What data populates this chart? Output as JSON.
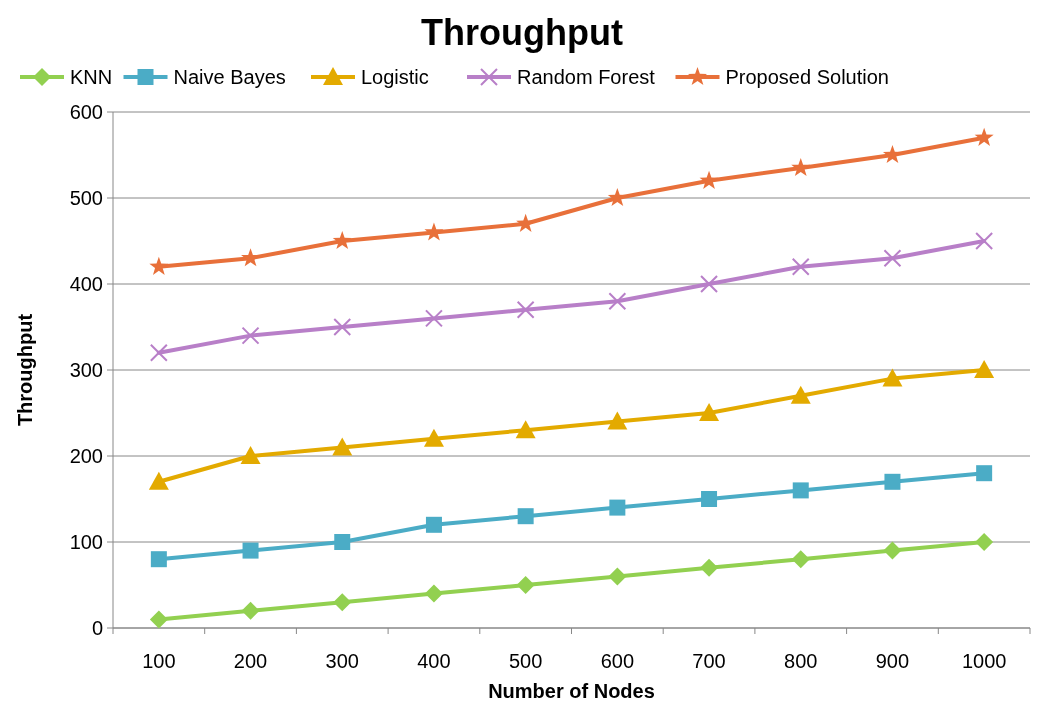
{
  "chart_data": {
    "type": "line",
    "title": "Throughput",
    "xlabel": "Number of Nodes",
    "ylabel": "Throughput",
    "categories": [
      "100",
      "200",
      "300",
      "400",
      "500",
      "600",
      "700",
      "800",
      "900",
      "1000"
    ],
    "series": [
      {
        "name": "KNN",
        "color": "#92d050",
        "marker": "diamond",
        "values": [
          10,
          20,
          30,
          40,
          50,
          60,
          70,
          80,
          90,
          100
        ]
      },
      {
        "name": "Naive Bayes",
        "color": "#4bacc6",
        "marker": "square",
        "values": [
          80,
          90,
          100,
          120,
          130,
          140,
          150,
          160,
          170,
          180
        ]
      },
      {
        "name": "Logistic",
        "color": "#e3aa00",
        "marker": "triangle",
        "values": [
          170,
          200,
          210,
          220,
          230,
          240,
          250,
          270,
          290,
          300
        ]
      },
      {
        "name": "Random Forest",
        "color": "#b87fc8",
        "marker": "cross",
        "values": [
          320,
          340,
          350,
          360,
          370,
          380,
          400,
          420,
          430,
          450
        ]
      },
      {
        "name": "Proposed Solution",
        "color": "#e8703a",
        "marker": "star",
        "values": [
          420,
          430,
          450,
          460,
          470,
          500,
          520,
          535,
          550,
          570
        ]
      }
    ],
    "ylim": [
      0,
      600
    ],
    "yticks": [
      0,
      100,
      200,
      300,
      400,
      500,
      600
    ],
    "grid": "y",
    "legend": "top",
    "line_style": "solid"
  }
}
